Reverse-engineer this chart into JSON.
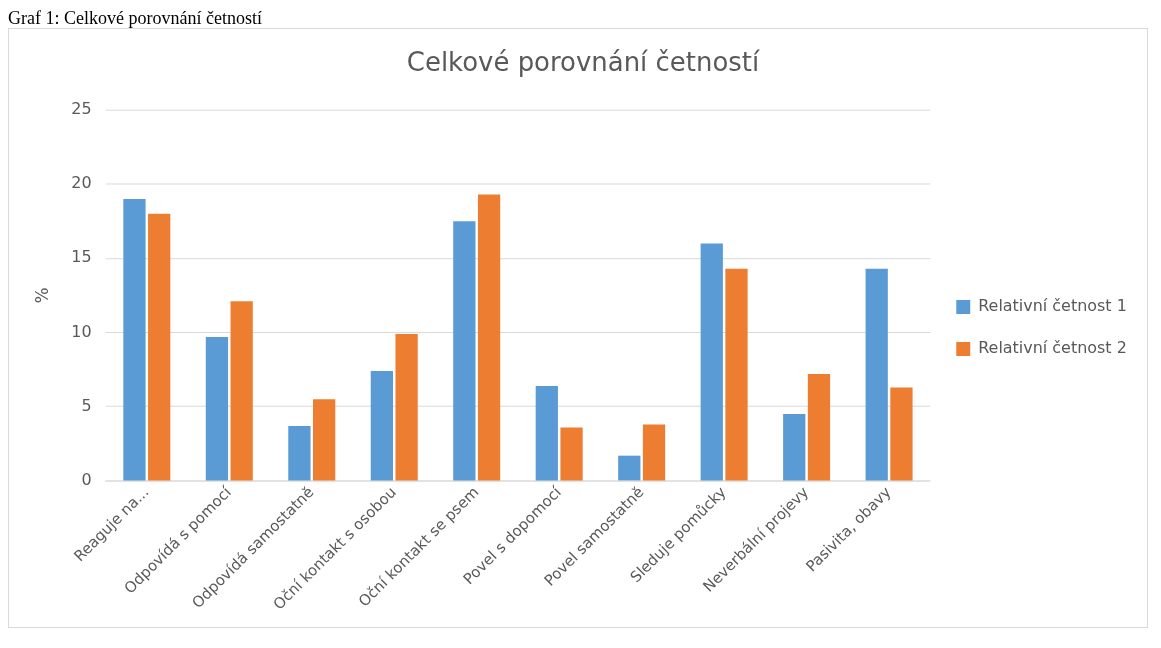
{
  "chart_data": {
    "type": "bar",
    "title": "Celkové porovnání četností",
    "ylabel": "%",
    "annotations": [
      "Graf 1: Celkové porovnání četností"
    ],
    "categories": [
      "Reaguje na...",
      "Odpovídá s pomocí",
      "Odpovídá samostatně",
      "Oční kontakt s osobou",
      "Oční kontakt se psem",
      "Povel s dopomocí",
      "Povel samostatně",
      "Sleduje pomůcky",
      "Neverbální projevy",
      "Pasivita, obavy"
    ],
    "series": [
      {
        "name": "Relativní četnost 1",
        "color": "#5b9bd5",
        "values": [
          19,
          9.7,
          3.7,
          7.4,
          17.5,
          6.4,
          1.7,
          16,
          4.5,
          14.3
        ]
      },
      {
        "name": "Relativní četnost 2",
        "color": "#ed7d31",
        "values": [
          18,
          12.1,
          5.5,
          9.9,
          19.3,
          3.6,
          3.8,
          14.3,
          7.2,
          6.3
        ]
      }
    ],
    "ylim": [
      0,
      25
    ],
    "yticks": [
      0,
      5,
      10,
      15,
      20,
      25
    ],
    "grid": "y",
    "legend": "right"
  }
}
